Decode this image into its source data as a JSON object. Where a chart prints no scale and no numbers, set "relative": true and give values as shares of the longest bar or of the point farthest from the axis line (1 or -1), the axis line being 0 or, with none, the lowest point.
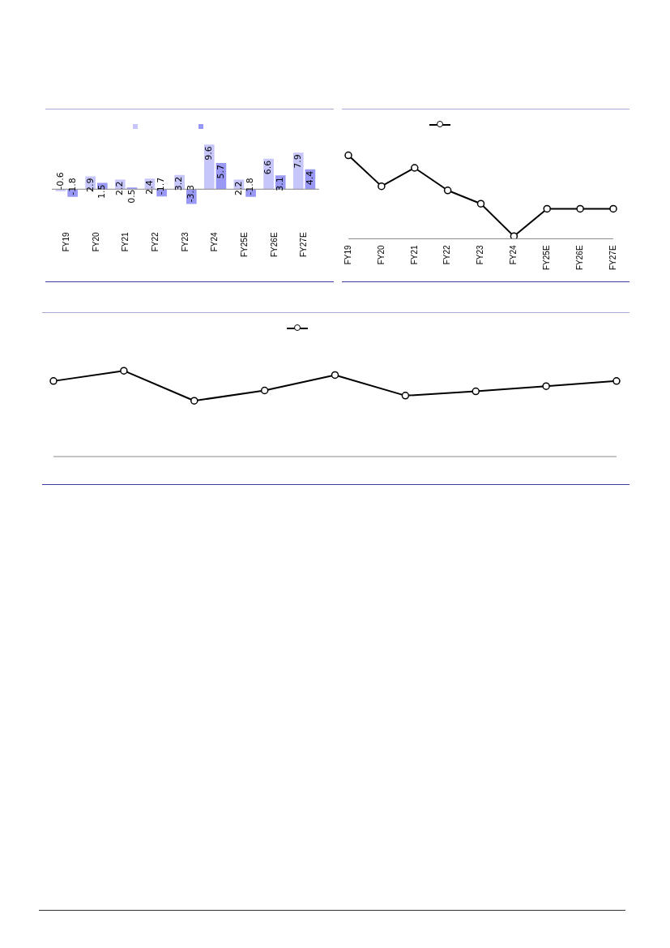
{
  "chart_data": [
    {
      "type": "bar",
      "categories": [
        "FY19",
        "FY20",
        "FY21",
        "FY22",
        "FY23",
        "FY24",
        "FY25E",
        "FY26E",
        "FY27E"
      ],
      "series": [
        {
          "color": "#c6c6fb",
          "values": [
            -0.6,
            2.9,
            2.2,
            2.4,
            3.2,
            9.6,
            2.2,
            6.6,
            7.9
          ]
        },
        {
          "color": "#9999f5",
          "values": [
            -1.8,
            1.5,
            0.5,
            -1.7,
            -3.3,
            5.7,
            -1.8,
            3.1,
            4.4
          ]
        }
      ],
      "data_labels": true,
      "tick_labels": "x",
      "grid": false
    },
    {
      "type": "line",
      "categories": [
        "FY19",
        "FY20",
        "FY21",
        "FY22",
        "FY23",
        "FY24",
        "FY25E",
        "FY26E",
        "FY27E"
      ],
      "relative": true,
      "series": [
        {
          "color": "#000000",
          "values": [
            1,
            0.63,
            0.85,
            0.58,
            0.42,
            0.03,
            0.36,
            0.36,
            0.36
          ]
        }
      ],
      "marker": "circle",
      "line_style": "solid",
      "tick_labels": "x",
      "grid": false
    },
    {
      "type": "line",
      "categories": [
        null,
        null,
        null,
        null,
        null,
        null,
        null,
        null,
        null
      ],
      "relative": true,
      "series": [
        {
          "color": "#000000",
          "values": [
            0.88,
            1,
            0.65,
            0.77,
            0.95,
            0.71,
            0.76,
            0.82,
            0.88
          ]
        }
      ],
      "marker": "circle",
      "line_style": "solid",
      "tick_labels": false,
      "grid": false
    }
  ]
}
